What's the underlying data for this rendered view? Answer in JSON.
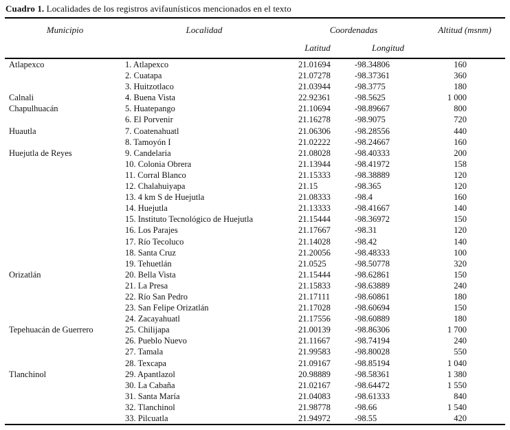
{
  "table": {
    "title_label": "Cuadro 1.",
    "title_text": "Localidades de los registros avifaunísticos mencionados en el texto",
    "columns": {
      "municipio": "Municipio",
      "localidad": "Localidad",
      "coordenadas": "Coordenadas",
      "altitud": "Altitud (msnm)",
      "latitud": "Latitud",
      "longitud": "Longitud"
    },
    "rows": [
      {
        "municipio": "Atlapexco",
        "localidad": "1. Atlapexco",
        "latitud": "21.01694",
        "longitud": "-98.34806",
        "altitud": "160"
      },
      {
        "municipio": "",
        "localidad": "2. Cuatapa",
        "latitud": "21.07278",
        "longitud": "-98.37361",
        "altitud": "360"
      },
      {
        "municipio": "",
        "localidad": "3. Huitzotlaco",
        "latitud": "21.03944",
        "longitud": "-98.3775",
        "altitud": "180"
      },
      {
        "municipio": "Calnali",
        "localidad": "4. Buena Vista",
        "latitud": "22.92361",
        "longitud": "-98.5625",
        "altitud": "1 000"
      },
      {
        "municipio": "Chapulhuacán",
        "localidad": "5. Huatepango",
        "latitud": "21.10694",
        "longitud": "-98.89667",
        "altitud": "800"
      },
      {
        "municipio": "",
        "localidad": "6. El Porvenir",
        "latitud": "21.16278",
        "longitud": "-98.9075",
        "altitud": "720"
      },
      {
        "municipio": "Huautla",
        "localidad": "7. Coatenahuatl",
        "latitud": "21.06306",
        "longitud": "-98.28556",
        "altitud": "440"
      },
      {
        "municipio": "",
        "localidad": "8. Tamoyón I",
        "latitud": "21.02222",
        "longitud": "-98.24667",
        "altitud": "160"
      },
      {
        "municipio": "Huejutla de Reyes",
        "localidad": "9. Candelaria",
        "latitud": "21.08028",
        "longitud": "-98.40333",
        "altitud": "200"
      },
      {
        "municipio": "",
        "localidad": "10. Colonia Obrera",
        "latitud": "21.13944",
        "longitud": "-98.41972",
        "altitud": "158"
      },
      {
        "municipio": "",
        "localidad": "11. Corral Blanco",
        "latitud": "21.15333",
        "longitud": "-98.38889",
        "altitud": "120"
      },
      {
        "municipio": "",
        "localidad": "12. Chalahuiyapa",
        "latitud": "21.15",
        "longitud": "-98.365",
        "altitud": "120"
      },
      {
        "municipio": "",
        "localidad": "13. 4 km S de Huejutla",
        "latitud": "21.08333",
        "longitud": "-98.4",
        "altitud": "160"
      },
      {
        "municipio": "",
        "localidad": "14. Huejutla",
        "latitud": "21.13333",
        "longitud": "-98.41667",
        "altitud": "140"
      },
      {
        "municipio": "",
        "localidad": "15. Instituto Tecnológico de Huejutla",
        "latitud": "21.15444",
        "longitud": "-98.36972",
        "altitud": "150"
      },
      {
        "municipio": "",
        "localidad": "16. Los Parajes",
        "latitud": "21.17667",
        "longitud": "-98.31",
        "altitud": "120"
      },
      {
        "municipio": "",
        "localidad": "17. Río Tecoluco",
        "latitud": "21.14028",
        "longitud": "-98.42",
        "altitud": "140"
      },
      {
        "municipio": "",
        "localidad": "18. Santa Cruz",
        "latitud": "21.20056",
        "longitud": "-98.48333",
        "altitud": "100"
      },
      {
        "municipio": "",
        "localidad": "19. Tehuetlán",
        "latitud": "21.0525",
        "longitud": "-98.50778",
        "altitud": "320"
      },
      {
        "municipio": "Orizatlán",
        "localidad": "20. Bella Vista",
        "latitud": "21.15444",
        "longitud": "-98.62861",
        "altitud": "150"
      },
      {
        "municipio": "",
        "localidad": "21. La Presa",
        "latitud": "21.15833",
        "longitud": "-98.63889",
        "altitud": "240"
      },
      {
        "municipio": "",
        "localidad": "22. Río San Pedro",
        "latitud": "21.17111",
        "longitud": "-98.60861",
        "altitud": "180"
      },
      {
        "municipio": "",
        "localidad": "23. San Felipe Orizatlán",
        "latitud": "21.17028",
        "longitud": "-98.60694",
        "altitud": "150"
      },
      {
        "municipio": "",
        "localidad": "24. Zacayahuatl",
        "latitud": "21.17556",
        "longitud": "-98.60889",
        "altitud": "180"
      },
      {
        "municipio": "Tepehuacán de Guerrero",
        "localidad": "25. Chilijapa",
        "latitud": "21.00139",
        "longitud": "-98.86306",
        "altitud": "1 700"
      },
      {
        "municipio": "",
        "localidad": "26. Pueblo Nuevo",
        "latitud": "21.11667",
        "longitud": "-98.74194",
        "altitud": "240"
      },
      {
        "municipio": "",
        "localidad": "27. Tamala",
        "latitud": "21.99583",
        "longitud": "-98.80028",
        "altitud": "550"
      },
      {
        "municipio": "",
        "localidad": "28. Texcapa",
        "latitud": "21.09167",
        "longitud": "-98.85194",
        "altitud": "1 040"
      },
      {
        "municipio": "Tlanchinol",
        "localidad": "29. Apantlazol",
        "latitud": "20.98889",
        "longitud": "-98.58361",
        "altitud": "1 380"
      },
      {
        "municipio": "",
        "localidad": "30. La Cabaña",
        "latitud": "21.02167",
        "longitud": "-98.64472",
        "altitud": "1 550"
      },
      {
        "municipio": "",
        "localidad": "31. Santa María",
        "latitud": "21.04083",
        "longitud": "-98.61333",
        "altitud": "840"
      },
      {
        "municipio": "",
        "localidad": "32. Tlanchinol",
        "latitud": "21.98778",
        "longitud": "-98.66",
        "altitud": "1 540"
      },
      {
        "municipio": "",
        "localidad": "33. Pilcuatla",
        "latitud": "21.94972",
        "longitud": "-98.55",
        "altitud": "420"
      }
    ]
  }
}
